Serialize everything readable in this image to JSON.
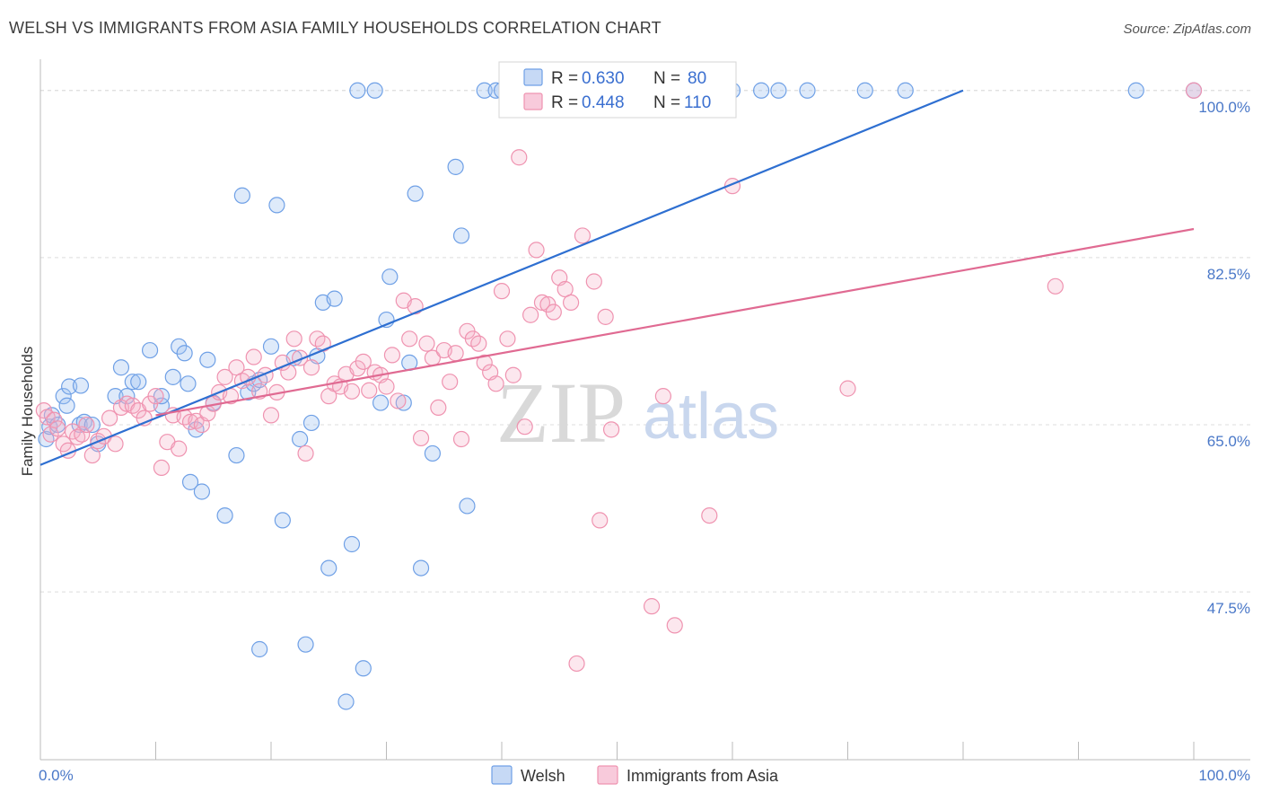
{
  "title": "WELSH VS IMMIGRANTS FROM ASIA FAMILY HOUSEHOLDS CORRELATION CHART",
  "source": "Source: ZipAtlas.com",
  "watermark": {
    "zip": "ZIP",
    "atlas": "atlas"
  },
  "colors": {
    "welsh": "#6fa0e6",
    "welsh_line": "#2e6fd1",
    "asia": "#ef93b0",
    "asia_line": "#e06a92",
    "grid": "#dcdcdc",
    "tick": "#4a78c8"
  },
  "legend": {
    "r_label": "R = ",
    "n_label": "N = ",
    "welsh": {
      "r": "0.630",
      "n": "80"
    },
    "asia": {
      "r": "0.448",
      "n": "110"
    }
  },
  "bottom_legend": {
    "welsh": "Welsh",
    "asia": "Immigrants from Asia"
  },
  "chart_data": {
    "type": "scatter",
    "title": "WELSH VS IMMIGRANTS FROM ASIA FAMILY HOUSEHOLDS CORRELATION CHART",
    "xlabel": "",
    "ylabel": "Family Households",
    "xlim": [
      0,
      100
    ],
    "ylim": [
      30.5,
      102
    ],
    "x_tick_labels": [
      "0.0%",
      "100.0%"
    ],
    "y_ticks": [
      47.5,
      65.0,
      82.5,
      100.0
    ],
    "y_tick_labels": [
      "47.5%",
      "65.0%",
      "82.5%",
      "100.0%"
    ],
    "grid": true,
    "legend_position": "top-center",
    "series": [
      {
        "name": "Welsh",
        "r": 0.63,
        "n": 80,
        "trend": {
          "x": [
            0,
            80
          ],
          "y": [
            60.8,
            100.0
          ]
        },
        "points": [
          [
            0.5,
            63.5
          ],
          [
            0.8,
            64.8
          ],
          [
            1.0,
            66.0
          ],
          [
            1.5,
            65.0
          ],
          [
            2.0,
            68.0
          ],
          [
            2.5,
            69.0
          ],
          [
            2.3,
            67.0
          ],
          [
            3.5,
            69.1
          ],
          [
            3.4,
            65.0
          ],
          [
            3.8,
            65.3
          ],
          [
            4.5,
            65.0
          ],
          [
            5.0,
            63.0
          ],
          [
            6.5,
            68.0
          ],
          [
            7.0,
            71.0
          ],
          [
            7.5,
            68.0
          ],
          [
            8.0,
            69.5
          ],
          [
            8.5,
            69.5
          ],
          [
            9.5,
            72.8
          ],
          [
            10.5,
            67.0
          ],
          [
            10.5,
            68.0
          ],
          [
            11.5,
            70.0
          ],
          [
            12.0,
            73.2
          ],
          [
            12.5,
            72.5
          ],
          [
            12.8,
            69.3
          ],
          [
            13.0,
            59.0
          ],
          [
            13.5,
            64.5
          ],
          [
            14.0,
            58.0
          ],
          [
            14.5,
            71.8
          ],
          [
            15.0,
            67.3
          ],
          [
            16.0,
            55.5
          ],
          [
            17.0,
            61.8
          ],
          [
            17.5,
            89.0
          ],
          [
            18.0,
            68.4
          ],
          [
            18.5,
            69.3
          ],
          [
            19.0,
            41.5
          ],
          [
            19.0,
            69.7
          ],
          [
            20.0,
            73.2
          ],
          [
            20.5,
            88.0
          ],
          [
            21.0,
            55.0
          ],
          [
            22.0,
            72.0
          ],
          [
            22.5,
            63.5
          ],
          [
            23.0,
            42.0
          ],
          [
            23.5,
            65.2
          ],
          [
            24.0,
            72.2
          ],
          [
            24.5,
            77.8
          ],
          [
            25.0,
            50.0
          ],
          [
            25.5,
            78.2
          ],
          [
            26.5,
            36.0
          ],
          [
            27.0,
            52.5
          ],
          [
            27.5,
            100.0
          ],
          [
            28.0,
            39.5
          ],
          [
            29.0,
            100.0
          ],
          [
            29.5,
            67.3
          ],
          [
            30.0,
            76.0
          ],
          [
            30.3,
            80.5
          ],
          [
            31.5,
            67.3
          ],
          [
            32.0,
            71.5
          ],
          [
            32.5,
            89.2
          ],
          [
            33.0,
            50.0
          ],
          [
            34.0,
            62.0
          ],
          [
            36.0,
            92.0
          ],
          [
            36.5,
            84.8
          ],
          [
            37.0,
            56.5
          ],
          [
            38.5,
            100.0
          ],
          [
            39.5,
            100.0
          ],
          [
            40.0,
            100.0
          ],
          [
            42.0,
            100.0
          ],
          [
            47.0,
            100.0
          ],
          [
            48.5,
            100.0
          ],
          [
            50.0,
            100.0
          ],
          [
            54.0,
            100.0
          ],
          [
            58.0,
            100.0
          ],
          [
            60.0,
            100.0
          ],
          [
            62.5,
            100.0
          ],
          [
            64.0,
            100.0
          ],
          [
            66.5,
            100.0
          ],
          [
            71.5,
            100.0
          ],
          [
            75.0,
            100.0
          ],
          [
            95.0,
            100.0
          ],
          [
            100.0,
            100.0
          ]
        ]
      },
      {
        "name": "Immigrants from Asia",
        "r": 0.448,
        "n": 110,
        "trend": {
          "x": [
            10,
            100
          ],
          "y": [
            66.0,
            85.5
          ]
        },
        "points": [
          [
            0.3,
            66.5
          ],
          [
            0.6,
            65.8
          ],
          [
            0.9,
            64.0
          ],
          [
            1.2,
            65.5
          ],
          [
            1.5,
            64.6
          ],
          [
            2.0,
            63.0
          ],
          [
            2.4,
            62.3
          ],
          [
            2.8,
            64.3
          ],
          [
            3.2,
            63.7
          ],
          [
            3.6,
            64.0
          ],
          [
            4.0,
            65.0
          ],
          [
            4.5,
            61.8
          ],
          [
            5.0,
            63.3
          ],
          [
            5.5,
            63.8
          ],
          [
            6.0,
            65.7
          ],
          [
            6.5,
            63.0
          ],
          [
            7.0,
            66.8
          ],
          [
            7.5,
            67.2
          ],
          [
            8.0,
            67.0
          ],
          [
            8.5,
            66.5
          ],
          [
            9.0,
            65.7
          ],
          [
            9.5,
            67.2
          ],
          [
            10.0,
            68.0
          ],
          [
            10.5,
            60.5
          ],
          [
            11.0,
            63.2
          ],
          [
            11.5,
            66.0
          ],
          [
            12.0,
            62.5
          ],
          [
            12.5,
            65.8
          ],
          [
            13.0,
            65.3
          ],
          [
            13.5,
            65.4
          ],
          [
            14.0,
            65.0
          ],
          [
            14.5,
            66.2
          ],
          [
            15.0,
            67.2
          ],
          [
            15.5,
            68.4
          ],
          [
            16.0,
            70.0
          ],
          [
            16.5,
            68.0
          ],
          [
            17.0,
            71.0
          ],
          [
            17.5,
            69.6
          ],
          [
            18.0,
            70.0
          ],
          [
            18.5,
            72.1
          ],
          [
            19.0,
            68.5
          ],
          [
            19.5,
            70.2
          ],
          [
            20.0,
            66.0
          ],
          [
            20.5,
            68.4
          ],
          [
            21.0,
            71.5
          ],
          [
            21.5,
            70.5
          ],
          [
            22.0,
            74.0
          ],
          [
            22.5,
            72.0
          ],
          [
            23.0,
            62.0
          ],
          [
            23.5,
            71.0
          ],
          [
            24.0,
            74.0
          ],
          [
            24.5,
            73.5
          ],
          [
            25.0,
            68.0
          ],
          [
            25.5,
            69.3
          ],
          [
            26.0,
            69.0
          ],
          [
            26.5,
            70.3
          ],
          [
            27.0,
            68.5
          ],
          [
            27.5,
            70.9
          ],
          [
            28.0,
            71.6
          ],
          [
            28.5,
            68.6
          ],
          [
            29.0,
            70.5
          ],
          [
            29.5,
            70.2
          ],
          [
            30.0,
            69.0
          ],
          [
            30.5,
            72.3
          ],
          [
            31.0,
            67.5
          ],
          [
            31.5,
            78.0
          ],
          [
            32.0,
            74.0
          ],
          [
            32.5,
            77.4
          ],
          [
            33.0,
            63.6
          ],
          [
            33.5,
            73.5
          ],
          [
            34.0,
            72.0
          ],
          [
            34.5,
            66.8
          ],
          [
            35.0,
            72.8
          ],
          [
            35.5,
            69.5
          ],
          [
            36.0,
            72.5
          ],
          [
            36.5,
            63.5
          ],
          [
            37.0,
            74.8
          ],
          [
            37.5,
            74.0
          ],
          [
            38.0,
            73.5
          ],
          [
            38.5,
            71.5
          ],
          [
            39.0,
            70.5
          ],
          [
            39.5,
            69.3
          ],
          [
            40.0,
            79.0
          ],
          [
            40.5,
            74.0
          ],
          [
            41.0,
            70.2
          ],
          [
            41.5,
            93.0
          ],
          [
            42.0,
            64.8
          ],
          [
            42.5,
            76.5
          ],
          [
            43.0,
            83.3
          ],
          [
            43.5,
            77.8
          ],
          [
            44.0,
            77.6
          ],
          [
            44.5,
            76.8
          ],
          [
            45.0,
            80.4
          ],
          [
            45.5,
            79.2
          ],
          [
            46.0,
            77.8
          ],
          [
            46.5,
            40.0
          ],
          [
            47.0,
            84.8
          ],
          [
            48.0,
            80.0
          ],
          [
            48.5,
            55.0
          ],
          [
            49.0,
            76.3
          ],
          [
            49.5,
            64.5
          ],
          [
            53.0,
            46.0
          ],
          [
            54.0,
            68.0
          ],
          [
            55.0,
            44.0
          ],
          [
            56.0,
            100.0
          ],
          [
            58.0,
            55.5
          ],
          [
            60.0,
            90.0
          ],
          [
            70.0,
            68.8
          ],
          [
            88.0,
            79.5
          ],
          [
            100.0,
            100.0
          ]
        ]
      }
    ]
  }
}
